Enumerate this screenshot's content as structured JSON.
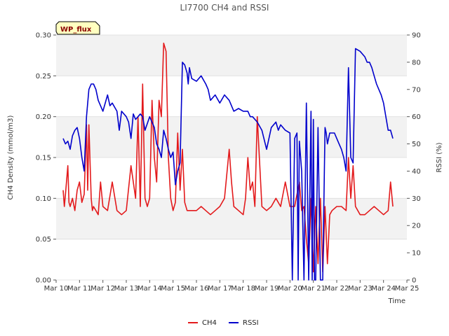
{
  "chart_data": {
    "type": "line",
    "title": "LI7700 CH4 and RSSI",
    "badge": "WP_flux",
    "xlabel": "Time",
    "ylabel_left": "CH4 Density (mmol/m3)",
    "ylabel_right": "RSSI (%)",
    "xlim": [
      10,
      25
    ],
    "ylim_left": [
      0,
      0.3
    ],
    "ylim_right": [
      0,
      90
    ],
    "x_ticks": [
      10,
      11,
      12,
      13,
      14,
      15,
      16,
      17,
      18,
      19,
      20,
      21,
      22,
      23,
      24,
      25
    ],
    "x_tick_labels": [
      "Mar 10",
      "Mar 11",
      "Mar 12",
      "Mar 13",
      "Mar 14",
      "Mar 15",
      "Mar 16",
      "Mar 17",
      "Mar 18",
      "Mar 19",
      "Mar 20",
      "Mar 21",
      "Mar 22",
      "Mar 23",
      "Mar 24",
      "Mar 25"
    ],
    "y_left_ticks": [
      0,
      0.05,
      0.1,
      0.15,
      0.2,
      0.25,
      0.3
    ],
    "y_left_tick_labels": [
      "0.00",
      "0.05",
      "0.10",
      "0.15",
      "0.20",
      "0.25",
      "0.30"
    ],
    "y_right_ticks": [
      0,
      10,
      20,
      30,
      40,
      50,
      60,
      70,
      80,
      90
    ],
    "y_right_tick_labels": [
      "0",
      "10",
      "20",
      "30",
      "40",
      "50",
      "60",
      "70",
      "80",
      "90"
    ],
    "legend_position": "bottom-center",
    "series": [
      {
        "name": "CH4",
        "axis": "left",
        "color": "#e31a1c",
        "x": [
          10.3,
          10.35,
          10.4,
          10.5,
          10.55,
          10.6,
          10.7,
          10.8,
          10.9,
          11.0,
          11.1,
          11.2,
          11.3,
          11.35,
          11.4,
          11.5,
          11.55,
          11.6,
          11.7,
          11.8,
          11.9,
          12.0,
          12.2,
          12.4,
          12.6,
          12.8,
          13.0,
          13.2,
          13.4,
          13.5,
          13.6,
          13.7,
          13.8,
          13.9,
          14.0,
          14.1,
          14.2,
          14.3,
          14.4,
          14.5,
          14.6,
          14.7,
          14.8,
          14.9,
          15.0,
          15.1,
          15.2,
          15.3,
          15.4,
          15.5,
          15.6,
          15.7,
          15.8,
          16.0,
          16.2,
          16.4,
          16.6,
          16.8,
          17.0,
          17.2,
          17.4,
          17.5,
          17.6,
          17.8,
          18.0,
          18.1,
          18.2,
          18.3,
          18.4,
          18.5,
          18.6,
          18.8,
          19.0,
          19.2,
          19.4,
          19.6,
          19.8,
          20.0,
          20.2,
          20.4,
          20.5,
          20.6,
          20.7,
          20.8,
          20.9,
          21.0,
          21.1,
          21.2,
          21.3,
          21.4,
          21.5,
          21.6,
          21.7,
          21.8,
          22.0,
          22.2,
          22.4,
          22.5,
          22.6,
          22.7,
          22.8,
          22.9,
          23.0,
          23.2,
          23.4,
          23.6,
          23.8,
          24.0,
          24.2,
          24.3,
          24.4
        ],
        "values": [
          0.11,
          0.09,
          0.105,
          0.14,
          0.095,
          0.09,
          0.1,
          0.085,
          0.11,
          0.12,
          0.095,
          0.105,
          0.19,
          0.11,
          0.19,
          0.1,
          0.085,
          0.09,
          0.085,
          0.08,
          0.12,
          0.09,
          0.085,
          0.12,
          0.085,
          0.08,
          0.085,
          0.14,
          0.1,
          0.2,
          0.09,
          0.24,
          0.1,
          0.09,
          0.1,
          0.22,
          0.15,
          0.12,
          0.22,
          0.2,
          0.29,
          0.28,
          0.15,
          0.1,
          0.085,
          0.095,
          0.18,
          0.11,
          0.16,
          0.095,
          0.085,
          0.085,
          0.085,
          0.085,
          0.09,
          0.085,
          0.08,
          0.085,
          0.09,
          0.1,
          0.16,
          0.12,
          0.09,
          0.085,
          0.08,
          0.1,
          0.15,
          0.11,
          0.12,
          0.09,
          0.2,
          0.09,
          0.085,
          0.09,
          0.1,
          0.09,
          0.12,
          0.09,
          0.09,
          0.12,
          0.085,
          0.09,
          0.05,
          0.02,
          0.1,
          0.01,
          0.09,
          0.02,
          0.1,
          0.01,
          0.09,
          0.02,
          0.08,
          0.085,
          0.09,
          0.09,
          0.085,
          0.15,
          0.1,
          0.14,
          0.09,
          0.085,
          0.08,
          0.08,
          0.085,
          0.09,
          0.085,
          0.08,
          0.085,
          0.12,
          0.09
        ],
        "raw_values": [
          0.11,
          0.09,
          0.105,
          0.14,
          0.095,
          0.09,
          0.1,
          0.085,
          0.11,
          0.12,
          0.095,
          0.105,
          0.19,
          0.11,
          0.19,
          0.1,
          0.085,
          0.09,
          0.085,
          0.08,
          0.12,
          0.09,
          0.085,
          0.12,
          0.085,
          0.08,
          0.085,
          0.14,
          0.1,
          0.2,
          0.09,
          0.24,
          0.1,
          0.09,
          0.1,
          0.22,
          0.15,
          0.12,
          0.22,
          0.2,
          0.29,
          0.28,
          0.15,
          0.1,
          0.085,
          0.095,
          0.18,
          0.11,
          0.16,
          0.095,
          0.085,
          0.085,
          0.085,
          0.085,
          0.09,
          0.085,
          0.08,
          0.085,
          0.09,
          0.1,
          0.16,
          0.12,
          0.09,
          0.085,
          0.08,
          0.1,
          0.15,
          0.11,
          0.12,
          0.09,
          0.2,
          0.09,
          0.085,
          0.09,
          0.1,
          0.09,
          0.12,
          0.09,
          0.09,
          0.12,
          0.085,
          0.09,
          0.05,
          0.02,
          0.1,
          0.01,
          0.09,
          0.02,
          0.1,
          0.01,
          0.09,
          0.02,
          0.08,
          0.085,
          0.09,
          0.09,
          0.085,
          0.15,
          0.1,
          0.14,
          0.09,
          0.085,
          0.08,
          0.08,
          0.085,
          0.09,
          0.085,
          0.08,
          0.085,
          0.12,
          0.09
        ]
      },
      {
        "name": "RSSI",
        "axis": "right",
        "color": "#0000cc",
        "x": [
          10.3,
          10.4,
          10.5,
          10.6,
          10.7,
          10.8,
          10.9,
          11.0,
          11.1,
          11.2,
          11.3,
          11.4,
          11.5,
          11.6,
          11.7,
          11.8,
          12.0,
          12.2,
          12.3,
          12.4,
          12.6,
          12.7,
          12.8,
          13.0,
          13.1,
          13.2,
          13.3,
          13.4,
          13.5,
          13.6,
          13.7,
          13.8,
          14.0,
          14.2,
          14.3,
          14.4,
          14.5,
          14.6,
          14.7,
          14.8,
          14.9,
          15.0,
          15.1,
          15.2,
          15.3,
          15.4,
          15.5,
          15.6,
          15.65,
          15.7,
          15.8,
          16.0,
          16.2,
          16.4,
          16.5,
          16.6,
          16.8,
          17.0,
          17.2,
          17.4,
          17.6,
          17.8,
          18.0,
          18.2,
          18.3,
          18.4,
          18.6,
          18.8,
          19.0,
          19.2,
          19.4,
          19.5,
          19.6,
          19.8,
          20.0,
          20.1,
          20.2,
          20.3,
          20.35,
          20.4,
          20.5,
          20.6,
          20.7,
          20.8,
          20.9,
          20.95,
          21.0,
          21.05,
          21.1,
          21.2,
          21.3,
          21.4,
          21.5,
          21.55,
          21.6,
          21.7,
          21.8,
          21.9,
          22.0,
          22.1,
          22.2,
          22.3,
          22.4,
          22.5,
          22.6,
          22.7,
          22.8,
          23.0,
          23.2,
          23.3,
          23.4,
          23.5,
          23.6,
          23.7,
          23.8,
          23.9,
          24.0,
          24.1,
          24.2,
          24.3,
          24.4
        ],
        "values": [
          52,
          50,
          51,
          48,
          53,
          55,
          56,
          52,
          45,
          40,
          60,
          70,
          72,
          72,
          70,
          66,
          62,
          68,
          64,
          65,
          62,
          55,
          62,
          60,
          58,
          52,
          61,
          59,
          60,
          61,
          60,
          55,
          60,
          56,
          50,
          48,
          45,
          55,
          52,
          48,
          45,
          47,
          35,
          40,
          43,
          80,
          79,
          76,
          72,
          78,
          74,
          73,
          75,
          72,
          70,
          66,
          68,
          65,
          68,
          66,
          62,
          63,
          62,
          62,
          60,
          60,
          58,
          55,
          48,
          56,
          58,
          55,
          57,
          55,
          54,
          0,
          52,
          54,
          0,
          51,
          40,
          0,
          65,
          0,
          62,
          0,
          59,
          0,
          0,
          56,
          0,
          0,
          56,
          54,
          50,
          54,
          54,
          54,
          52,
          50,
          48,
          45,
          40,
          78,
          45,
          43,
          85,
          84,
          82,
          80,
          80,
          78,
          75,
          72,
          70,
          68,
          65,
          60,
          55,
          55,
          52
        ],
        "raw_values": [
          52,
          50,
          51,
          48,
          53,
          55,
          56,
          52,
          45,
          40,
          60,
          70,
          72,
          72,
          70,
          66,
          62,
          68,
          64,
          65,
          62,
          55,
          62,
          60,
          58,
          52,
          61,
          59,
          60,
          61,
          60,
          55,
          60,
          56,
          50,
          48,
          45,
          55,
          52,
          48,
          45,
          47,
          35,
          40,
          43,
          80,
          79,
          76,
          72,
          78,
          74,
          73,
          75,
          72,
          70,
          66,
          68,
          65,
          68,
          66,
          62,
          63,
          62,
          62,
          60,
          60,
          58,
          55,
          48,
          56,
          58,
          55,
          57,
          55,
          54,
          0,
          52,
          54,
          0,
          51,
          40,
          0,
          65,
          0,
          62,
          0,
          59,
          0,
          0,
          56,
          0,
          0,
          56,
          54,
          50,
          54,
          54,
          54,
          52,
          50,
          48,
          45,
          40,
          78,
          45,
          43,
          85,
          84,
          82,
          80,
          80,
          78,
          75,
          72,
          70,
          68,
          65,
          60,
          55,
          55,
          52
        ]
      }
    ]
  },
  "colors": {
    "band": "#f2f2f2",
    "grid": "#dddddd",
    "badge_fill": "#ffffc0",
    "badge_text": "#8b0000"
  }
}
